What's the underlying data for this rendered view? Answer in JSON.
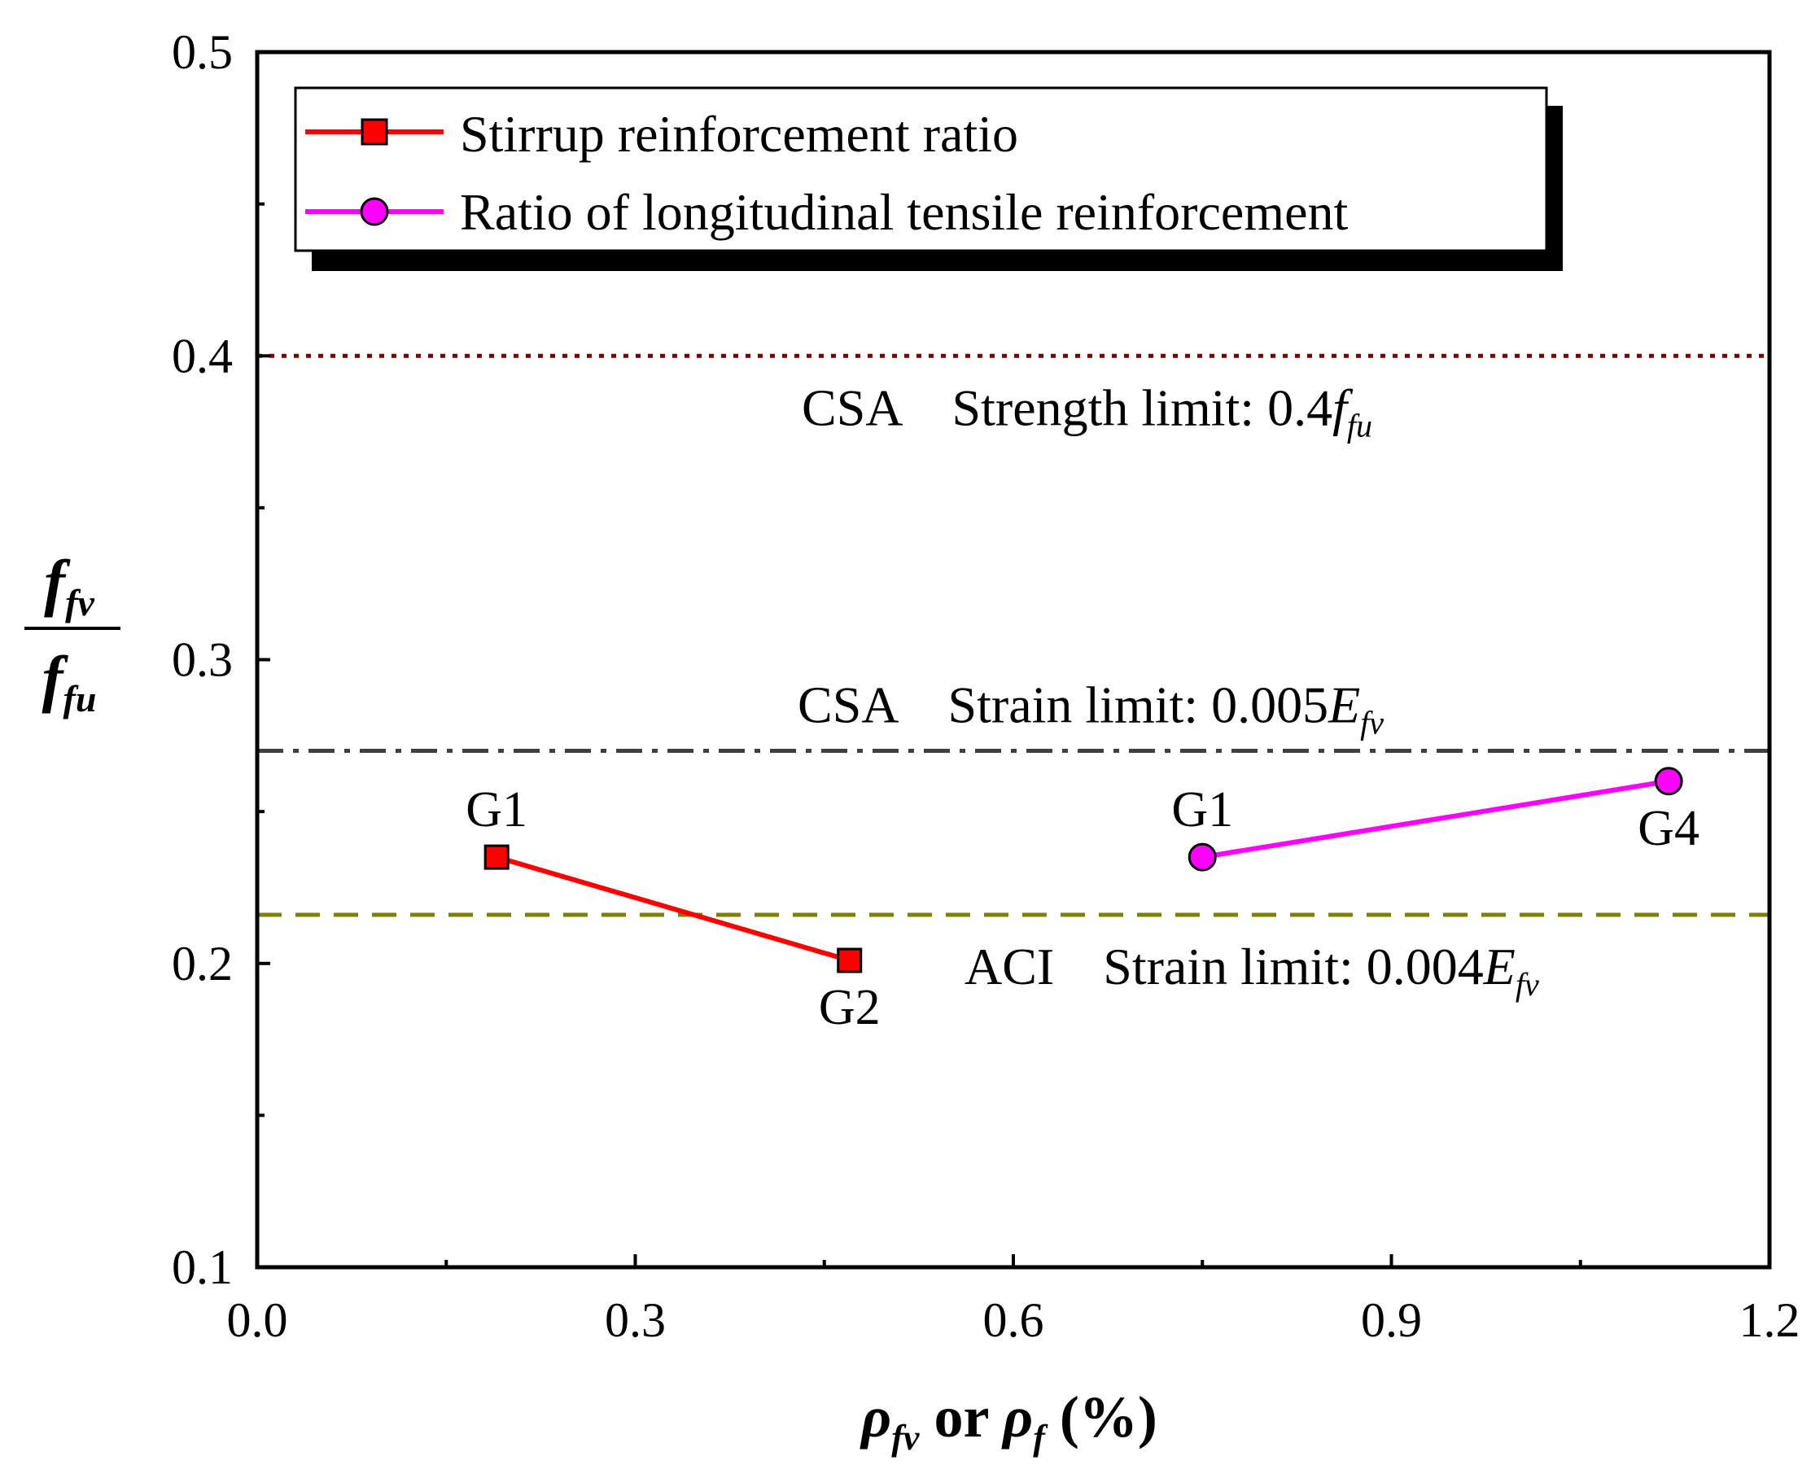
{
  "chart_data": {
    "type": "line",
    "xlabel": {
      "main": "ρ",
      "sub1": "fv",
      "mid": " or ",
      "main2": "ρ",
      "sub2": "f",
      "unit": " (%)"
    },
    "ylabel": {
      "num": "f",
      "num_sub": "fv",
      "den": "f",
      "den_sub": "fu"
    },
    "xlim": [
      0.0,
      1.2
    ],
    "ylim": [
      0.1,
      0.5
    ],
    "xticks": [
      "0.0",
      "0.3",
      "0.6",
      "0.9",
      "1.2"
    ],
    "yticks": [
      "0.1",
      "0.2",
      "0.3",
      "0.4",
      "0.5"
    ],
    "xtick_values": [
      0.0,
      0.3,
      0.6,
      0.9,
      1.2
    ],
    "ytick_values": [
      0.1,
      0.2,
      0.3,
      0.4,
      0.5
    ],
    "x_minor_step": 0.15,
    "y_minor_step": 0.05,
    "series": [
      {
        "name": "Stirrup reinforcement ratio",
        "color": "#ff0000",
        "marker": "square",
        "x": [
          0.19,
          0.47
        ],
        "y": [
          0.235,
          0.201
        ],
        "labels": [
          "G1",
          "G2"
        ],
        "label_pos": [
          "above",
          "below"
        ]
      },
      {
        "name": "Ratio of longitudinal tensile reinforcement",
        "color": "#ff00ff",
        "marker": "circle",
        "x": [
          0.75,
          1.12
        ],
        "y": [
          0.235,
          0.26
        ],
        "labels": [
          "G1",
          "G4"
        ],
        "label_pos": [
          "above",
          "below"
        ]
      }
    ],
    "reference_lines": [
      {
        "y": 0.4,
        "color": "#800000",
        "style": "dotted",
        "prefix": "CSA",
        "text": "Strength limit: 0.4",
        "var": "f",
        "var_sub": "fu"
      },
      {
        "y": 0.27,
        "color": "#404040",
        "style": "dashdot",
        "prefix": "CSA",
        "text": "Strain limit: 0.005",
        "var": "E",
        "var_sub": "fv"
      },
      {
        "y": 0.216,
        "color": "#808000",
        "style": "dashed",
        "prefix": "ACI",
        "text": "Strain limit: 0.004",
        "var": "E",
        "var_sub": "fv"
      }
    ],
    "legend_position": "top-left"
  }
}
